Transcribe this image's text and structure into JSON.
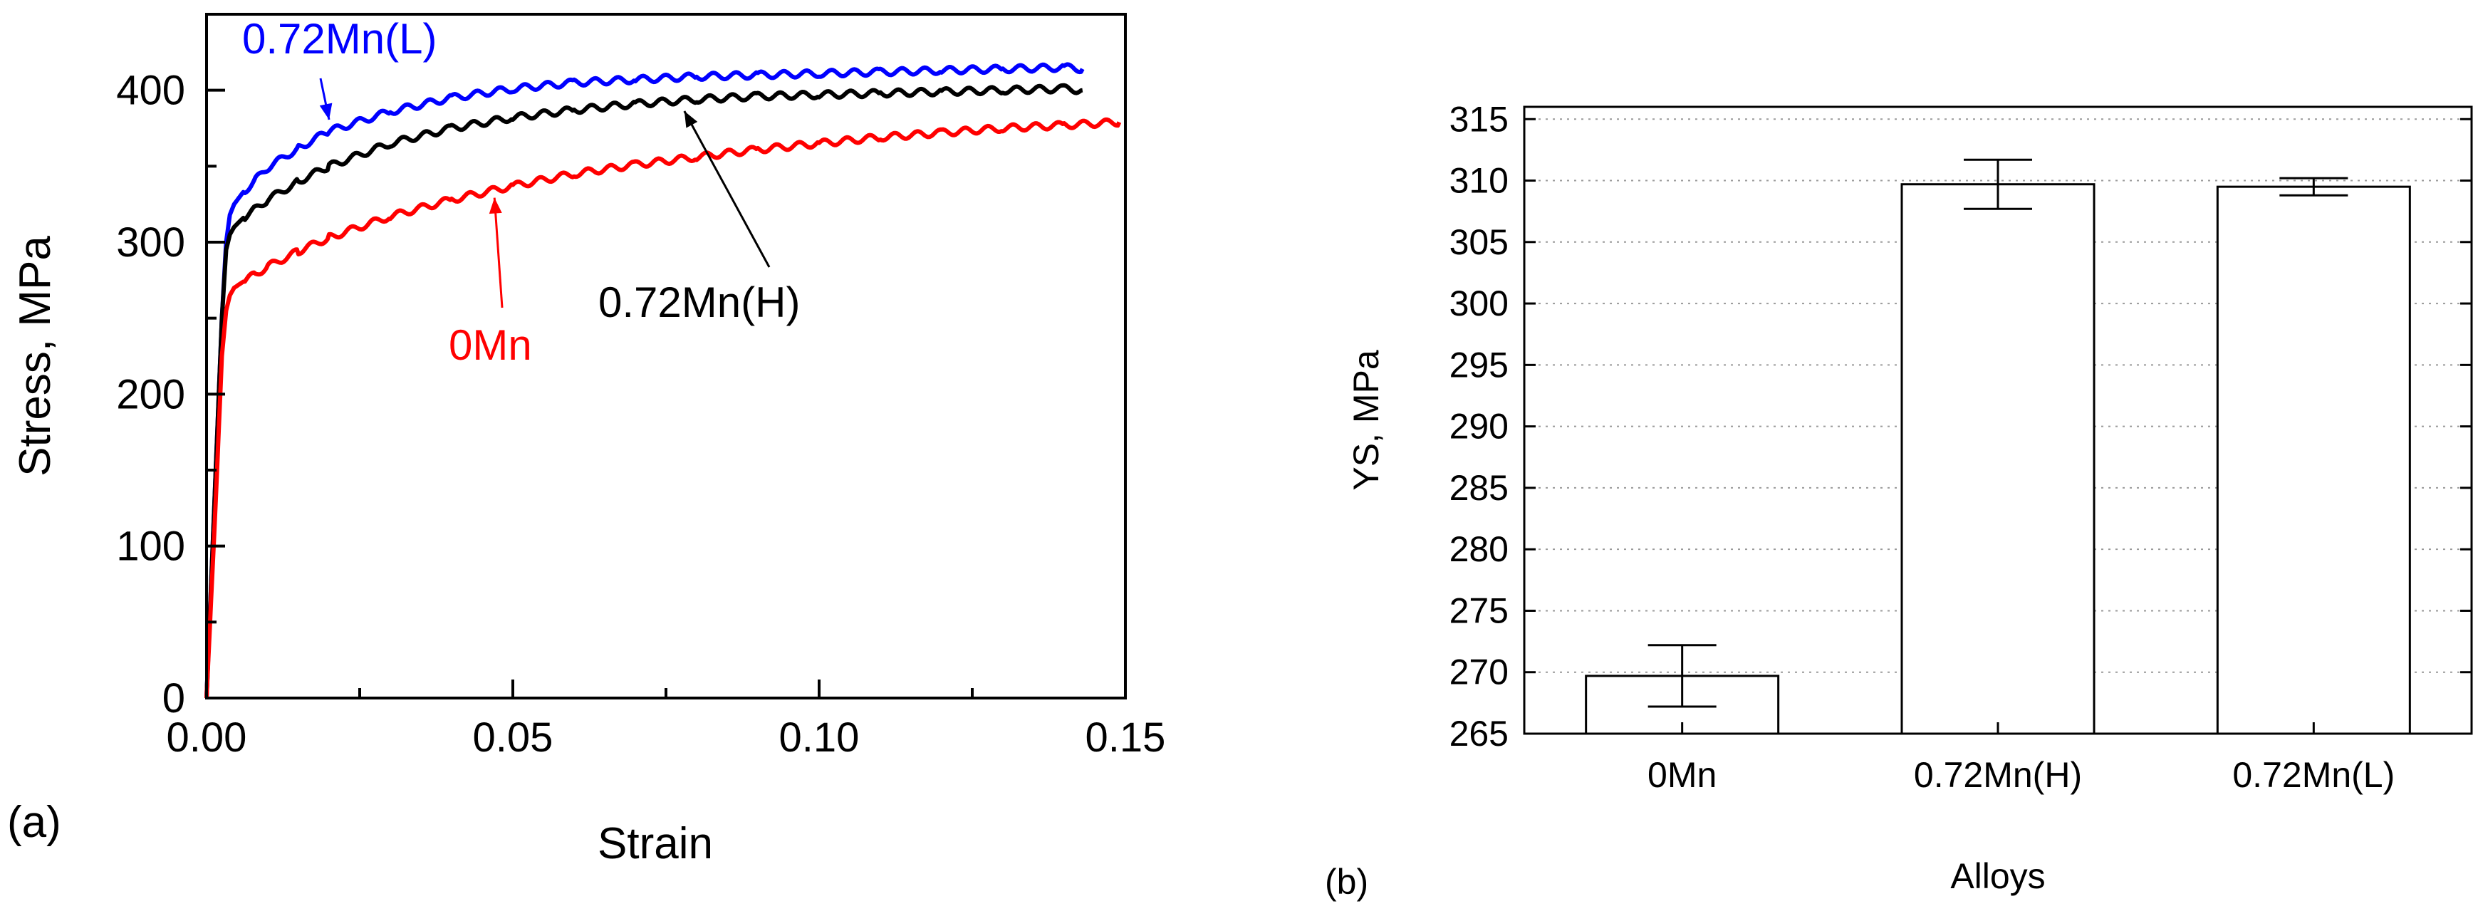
{
  "panel_a": {
    "label": "(a)"
  },
  "panel_b": {
    "label": "(b)"
  },
  "chart_data": [
    {
      "panel": "(a)",
      "type": "line",
      "xlabel": "Strain",
      "ylabel": "Stress, MPa",
      "xlim": [
        0.0,
        0.15
      ],
      "ylim": [
        0,
        450
      ],
      "xticks": [
        "0.00",
        "0.05",
        "0.10",
        "0.15"
      ],
      "yticks": [
        "0",
        "100",
        "200",
        "300",
        "400"
      ],
      "series": [
        {
          "name": "0.72Mn(L)",
          "color": "#0000ff",
          "x": [
            0,
            0.0015,
            0.0025,
            0.0032,
            0.0038,
            0.0045,
            0.006,
            0.008,
            0.01,
            0.015,
            0.02,
            0.03,
            0.04,
            0.05,
            0.06,
            0.07,
            0.08,
            0.09,
            0.1,
            0.11,
            0.12,
            0.13,
            0.14,
            0.143
          ],
          "y": [
            0,
            150,
            250,
            300,
            318,
            325,
            333,
            341,
            349,
            362,
            373,
            386,
            395,
            401,
            405,
            407,
            409,
            410,
            411,
            412,
            413,
            414,
            415,
            414
          ]
        },
        {
          "name": "0.72Mn(H)",
          "color": "#000000",
          "x": [
            0,
            0.0015,
            0.0025,
            0.0032,
            0.0038,
            0.0045,
            0.006,
            0.008,
            0.01,
            0.015,
            0.02,
            0.03,
            0.04,
            0.05,
            0.06,
            0.07,
            0.08,
            0.09,
            0.1,
            0.11,
            0.12,
            0.13,
            0.14,
            0.143
          ],
          "y": [
            0,
            150,
            250,
            295,
            305,
            310,
            316,
            322,
            328,
            340,
            350,
            365,
            375,
            382,
            387,
            391,
            394,
            396,
            397,
            398,
            399,
            400,
            401,
            400
          ]
        },
        {
          "name": "0Mn",
          "color": "#ff0000",
          "x": [
            0,
            0.0015,
            0.0025,
            0.0032,
            0.0038,
            0.0045,
            0.006,
            0.008,
            0.01,
            0.015,
            0.02,
            0.03,
            0.04,
            0.05,
            0.06,
            0.07,
            0.08,
            0.09,
            0.1,
            0.11,
            0.12,
            0.13,
            0.14,
            0.149
          ],
          "y": [
            0,
            130,
            225,
            255,
            265,
            270,
            274,
            279,
            284,
            294,
            303,
            317,
            328,
            337,
            345,
            351,
            356,
            361,
            365,
            369,
            372,
            375,
            377,
            379
          ]
        }
      ],
      "annotations": [
        {
          "text": "0.72Mn(L)",
          "color": "#0000ff",
          "x": 0.02,
          "y": 375
        },
        {
          "text": "0.72Mn(H)",
          "color": "#000000",
          "x": 0.078,
          "y": 390
        },
        {
          "text": "0Mn",
          "color": "#ff0000",
          "x": 0.047,
          "y": 333
        }
      ]
    },
    {
      "panel": "(b)",
      "type": "bar",
      "xlabel": "Alloys",
      "ylabel": "YS, MPa",
      "ylim": [
        265,
        316
      ],
      "yticks": [
        "265",
        "270",
        "275",
        "280",
        "285",
        "290",
        "295",
        "300",
        "305",
        "310",
        "315"
      ],
      "grid": true,
      "categories": [
        "0Mn",
        "0.72Mn(H)",
        "0.72Mn(L)"
      ],
      "values": [
        269.7,
        309.7,
        309.5
      ],
      "error_bars": [
        2.5,
        2.0,
        0.7
      ]
    }
  ]
}
